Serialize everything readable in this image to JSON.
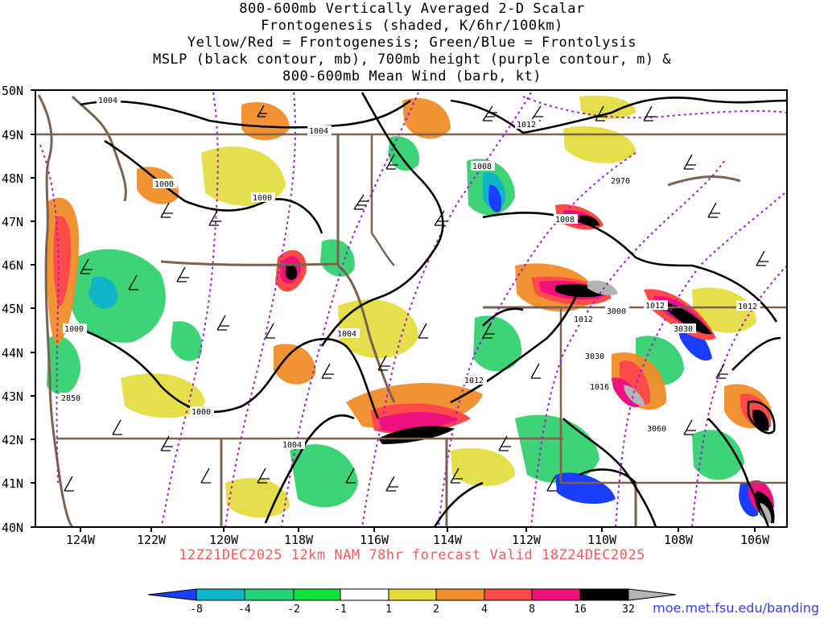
{
  "titles": [
    "800-600mb Vertically Averaged 2-D Scalar",
    "Frontogenesis (shaded, K/6hr/100km)",
    "Yellow/Red = Frontogenesis;  Green/Blue = Frontolysis",
    "MSLP (black contour, mb), 700mb height (purple contour, m) &",
    "800-600mb Mean Wind (barb, kt)"
  ],
  "lat_labels": [
    "50N",
    "49N",
    "48N",
    "47N",
    "46N",
    "45N",
    "44N",
    "43N",
    "42N",
    "41N",
    "40N"
  ],
  "lon_labels": [
    "124W",
    "122W",
    "120W",
    "118W",
    "116W",
    "114W",
    "112W",
    "110W",
    "108W",
    "106W"
  ],
  "mslp_labels": [
    "1004",
    "1004",
    "1000",
    "1000",
    "1008",
    "1008",
    "1012",
    "1012",
    "1012",
    "1012",
    "1012",
    "1016",
    "1004",
    "1000",
    "1000",
    "1004"
  ],
  "height_labels": [
    "2970",
    "3000",
    "3030",
    "3030",
    "3060",
    "2850"
  ],
  "footer": "12Z21DEC2025 12km NAM 78hr forecast Valid 18Z24DEC2025",
  "credit": "moe.met.fsu.edu/banding",
  "colorbar": {
    "labels": [
      "-8",
      "-4",
      "-2",
      "-1",
      "1",
      "2",
      "4",
      "8",
      "16",
      "32"
    ],
    "colors": [
      "#1b3dff",
      "#10b4c8",
      "#22d27a",
      "#10e23c",
      "#ffffff",
      "#e3dc3c",
      "#f08c2a",
      "#ff4a4a",
      "#f0127c",
      "#000000",
      "#b4b4b4"
    ]
  }
}
